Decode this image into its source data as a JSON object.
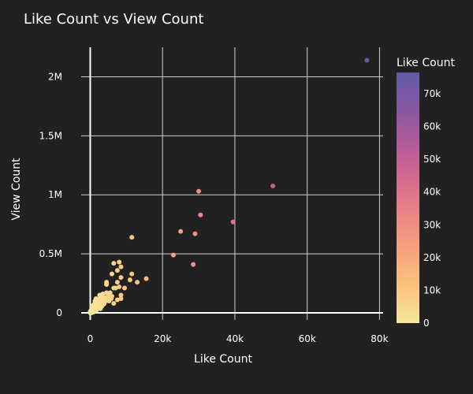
{
  "chart_data": {
    "type": "scatter",
    "title": "Like Count vs View Count",
    "xlabel": "Like Count",
    "ylabel": "View Count",
    "xlim": [
      -2500,
      81000
    ],
    "ylim": [
      -60000,
      2250000
    ],
    "xticks": [
      0,
      20000,
      40000,
      60000,
      80000
    ],
    "xtick_labels": [
      "0",
      "20k",
      "40k",
      "60k",
      "80k"
    ],
    "yticks": [
      0,
      500000,
      1000000,
      1500000,
      2000000
    ],
    "ytick_labels": [
      "0",
      "0.5M",
      "1M",
      "1.5M",
      "2M"
    ],
    "grid": true,
    "colorbar": {
      "title": "Like Count",
      "range": [
        0,
        76500
      ],
      "ticks": [
        0,
        10000,
        20000,
        30000,
        40000,
        50000,
        60000,
        70000
      ],
      "tick_labels": [
        "0",
        "10k",
        "20k",
        "30k",
        "40k",
        "50k",
        "60k",
        "70k"
      ],
      "colors": [
        "#f6e59c",
        "#f9c57e",
        "#f6a47f",
        "#ec8685",
        "#d66a8e",
        "#b25b9b",
        "#8658a2",
        "#6159a8"
      ]
    },
    "points": [
      {
        "x": 76500,
        "y": 2140000
      },
      {
        "x": 50500,
        "y": 1075000
      },
      {
        "x": 39500,
        "y": 770000
      },
      {
        "x": 30000,
        "y": 1030000
      },
      {
        "x": 30500,
        "y": 830000
      },
      {
        "x": 25000,
        "y": 690000
      },
      {
        "x": 29000,
        "y": 670000
      },
      {
        "x": 28500,
        "y": 410000
      },
      {
        "x": 23000,
        "y": 490000
      },
      {
        "x": 11500,
        "y": 640000
      },
      {
        "x": 15500,
        "y": 290000
      },
      {
        "x": 13000,
        "y": 260000
      },
      {
        "x": 11500,
        "y": 330000
      },
      {
        "x": 11000,
        "y": 280000
      },
      {
        "x": 9500,
        "y": 210000
      },
      {
        "x": 8000,
        "y": 430000
      },
      {
        "x": 8500,
        "y": 390000
      },
      {
        "x": 6500,
        "y": 420000
      },
      {
        "x": 7500,
        "y": 360000
      },
      {
        "x": 8500,
        "y": 300000
      },
      {
        "x": 7500,
        "y": 260000
      },
      {
        "x": 6000,
        "y": 330000
      },
      {
        "x": 4500,
        "y": 260000
      },
      {
        "x": 4500,
        "y": 240000
      },
      {
        "x": 6500,
        "y": 210000
      },
      {
        "x": 7000,
        "y": 210000
      },
      {
        "x": 8000,
        "y": 220000
      },
      {
        "x": 8500,
        "y": 150000
      },
      {
        "x": 8500,
        "y": 120000
      },
      {
        "x": 7500,
        "y": 110000
      },
      {
        "x": 6500,
        "y": 80000
      },
      {
        "x": 6000,
        "y": 140000
      },
      {
        "x": 5500,
        "y": 170000
      },
      {
        "x": 5000,
        "y": 150000
      },
      {
        "x": 4500,
        "y": 170000
      },
      {
        "x": 4000,
        "y": 130000
      },
      {
        "x": 4000,
        "y": 90000
      },
      {
        "x": 3500,
        "y": 160000
      },
      {
        "x": 3500,
        "y": 110000
      },
      {
        "x": 3000,
        "y": 140000
      },
      {
        "x": 3000,
        "y": 90000
      },
      {
        "x": 3000,
        "y": 60000
      },
      {
        "x": 2500,
        "y": 120000
      },
      {
        "x": 2500,
        "y": 70000
      },
      {
        "x": 2000,
        "y": 110000
      },
      {
        "x": 2000,
        "y": 80000
      },
      {
        "x": 2000,
        "y": 50000
      },
      {
        "x": 1500,
        "y": 90000
      },
      {
        "x": 1500,
        "y": 60000
      },
      {
        "x": 1500,
        "y": 30000
      },
      {
        "x": 1000,
        "y": 70000
      },
      {
        "x": 1000,
        "y": 40000
      },
      {
        "x": 1000,
        "y": 20000
      },
      {
        "x": 500,
        "y": 50000
      },
      {
        "x": 500,
        "y": 30000
      },
      {
        "x": 500,
        "y": 10000
      },
      {
        "x": 200,
        "y": 20000
      },
      {
        "x": 200,
        "y": 5000
      },
      {
        "x": 0,
        "y": 10000
      },
      {
        "x": 0,
        "y": 0
      },
      {
        "x": 300,
        "y": 0
      },
      {
        "x": 800,
        "y": 5000
      },
      {
        "x": 1200,
        "y": 15000
      },
      {
        "x": 1800,
        "y": 25000
      },
      {
        "x": 2200,
        "y": 40000
      },
      {
        "x": 2800,
        "y": 35000
      },
      {
        "x": 3200,
        "y": 55000
      },
      {
        "x": 3800,
        "y": 75000
      },
      {
        "x": 4200,
        "y": 110000
      },
      {
        "x": 4800,
        "y": 120000
      },
      {
        "x": 5200,
        "y": 100000
      },
      {
        "x": 5800,
        "y": 120000
      },
      {
        "x": 2600,
        "y": 150000
      },
      {
        "x": 1600,
        "y": 120000
      },
      {
        "x": 1300,
        "y": 100000
      },
      {
        "x": 700,
        "y": 60000
      }
    ]
  }
}
